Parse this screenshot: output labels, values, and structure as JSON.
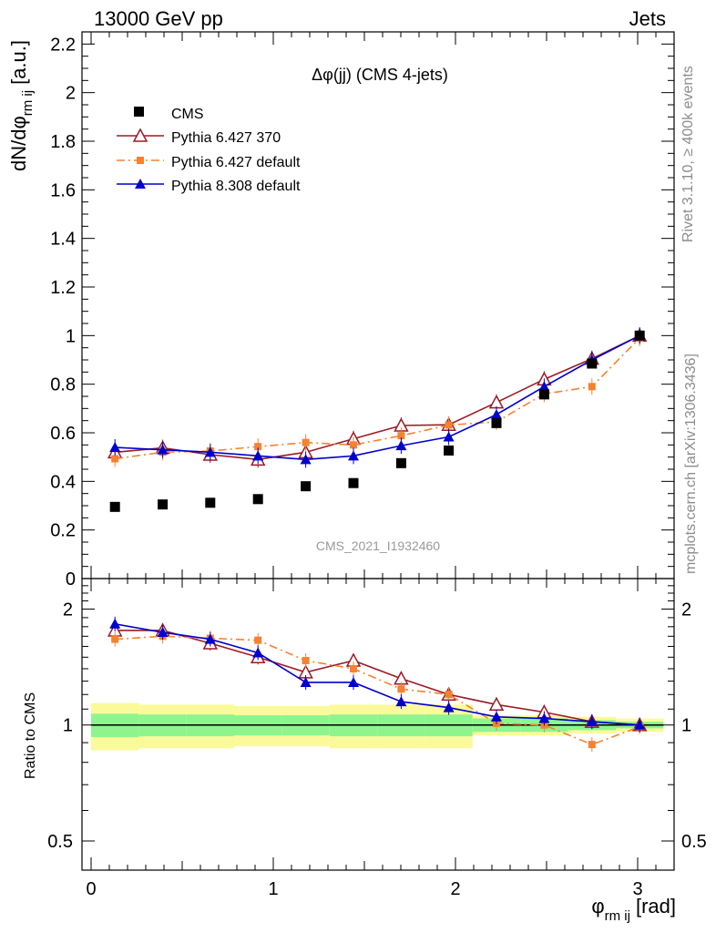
{
  "header": {
    "left": "13000 GeV pp",
    "right": "Jets"
  },
  "side": {
    "rivet": "Rivet 3.1.10, ≥ 400k events",
    "mcplots": "mcplots.cern.ch [arXiv:1306.3436]"
  },
  "chart_data": {
    "type": "line",
    "title": "Δφ(jj) (CMS 4-jets)",
    "watermark": "CMS_2021_I1932460",
    "xlabel": "φ",
    "xlabel_sub": "rm ij",
    "xlabel_unit": "[rad]",
    "ylabel": "dN/dφ",
    "ylabel_sub": "rm ij",
    "ylabel_unit": "[a.u.]",
    "ratio_ylabel": "Ratio to CMS",
    "xlim": [
      -0.05,
      3.2
    ],
    "ylim": [
      0,
      2.25
    ],
    "ratio_ylim": [
      0.42,
      2.4
    ],
    "x_ticks": [
      "0",
      "1",
      "2",
      "3"
    ],
    "y_ticks": [
      "0",
      "0.2",
      "0.4",
      "0.6",
      "0.8",
      "1",
      "1.2",
      "1.4",
      "1.6",
      "1.8",
      "2",
      "2.2"
    ],
    "ratio_ticks": [
      "0.5",
      "1",
      "2"
    ],
    "x": [
      0.131,
      0.393,
      0.654,
      0.916,
      1.178,
      1.44,
      1.702,
      1.963,
      2.225,
      2.487,
      2.749,
      3.011
    ],
    "bin_edges": [
      0.0,
      0.262,
      0.524,
      0.785,
      1.047,
      1.309,
      1.571,
      1.833,
      2.094,
      2.356,
      2.618,
      2.88,
      3.142
    ],
    "band_inner": [
      0.07,
      0.065,
      0.065,
      0.06,
      0.06,
      0.065,
      0.065,
      0.065,
      0.04,
      0.04,
      0.03,
      0.02
    ],
    "band_outer": [
      0.14,
      0.13,
      0.13,
      0.12,
      0.12,
      0.13,
      0.13,
      0.13,
      0.06,
      0.06,
      0.05,
      0.04
    ],
    "legend": [
      "CMS",
      "Pythia 6.427 370",
      "Pythia 6.427 default",
      "Pythia 8.308 default"
    ],
    "series": [
      {
        "name": "CMS",
        "color": "#000000",
        "marker": "square",
        "values": [
          0.295,
          0.305,
          0.312,
          0.327,
          0.38,
          0.393,
          0.475,
          0.527,
          0.64,
          0.758,
          0.885,
          1.0
        ]
      },
      {
        "name": "Pythia 6.427 370",
        "color": "#9b1b24",
        "marker": "open-triangle",
        "dash": "",
        "values": [
          0.52,
          0.538,
          0.51,
          0.49,
          0.52,
          0.575,
          0.63,
          0.633,
          0.725,
          0.82,
          0.905,
          1.0
        ]
      },
      {
        "name": "Pythia 6.427 default",
        "color": "#f58231",
        "marker": "small-square",
        "dash": "9,4,2,4",
        "values": [
          0.493,
          0.52,
          0.525,
          0.543,
          0.56,
          0.55,
          0.588,
          0.632,
          0.645,
          0.76,
          0.79,
          0.99
        ]
      },
      {
        "name": "Pythia 8.308 default",
        "color": "#0000cc",
        "marker": "triangle",
        "dash": "",
        "values": [
          0.54,
          0.53,
          0.52,
          0.505,
          0.49,
          0.505,
          0.547,
          0.583,
          0.675,
          0.79,
          0.9,
          1.0
        ]
      }
    ],
    "ratios": [
      {
        "name": "Pythia 6.427 370",
        "values": [
          1.76,
          1.76,
          1.63,
          1.5,
          1.37,
          1.47,
          1.32,
          1.2,
          1.13,
          1.08,
          1.02,
          1.0
        ]
      },
      {
        "name": "Pythia 6.427 default",
        "values": [
          1.67,
          1.7,
          1.68,
          1.66,
          1.47,
          1.4,
          1.24,
          1.2,
          1.01,
          1.0,
          0.89,
          0.99
        ]
      },
      {
        "name": "Pythia 8.308 default",
        "values": [
          1.83,
          1.74,
          1.67,
          1.54,
          1.29,
          1.29,
          1.15,
          1.11,
          1.05,
          1.04,
          1.02,
          1.0
        ]
      }
    ]
  }
}
